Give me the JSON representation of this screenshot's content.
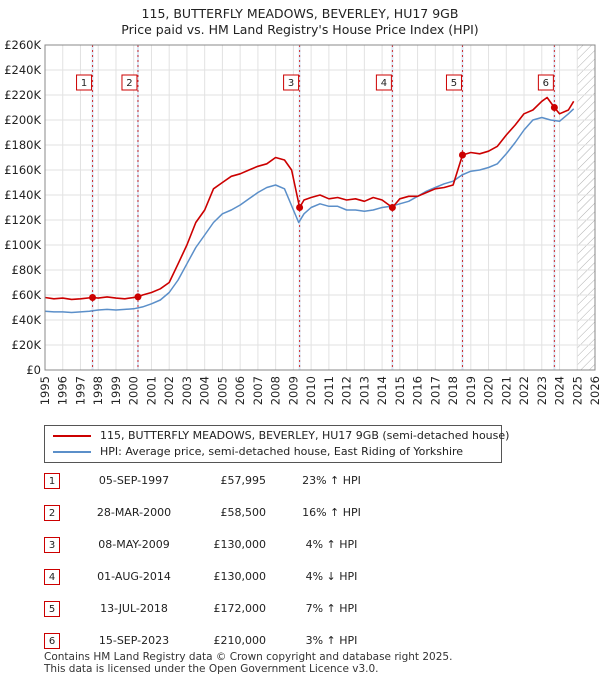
{
  "title_line1": "115, BUTTERFLY MEADOWS, BEVERLEY, HU17 9GB",
  "title_line2": "Price paid vs. HM Land Registry's House Price Index (HPI)",
  "colors": {
    "property": "#cc0000",
    "hpi": "#5b8fc9",
    "hpi_shade": "#dbe7f5",
    "marker_line": "#cc0000"
  },
  "chart_data": {
    "type": "line",
    "x_range": [
      1995,
      2026
    ],
    "ylim": [
      0,
      260000
    ],
    "y_ticks": [
      0,
      20000,
      40000,
      60000,
      80000,
      100000,
      120000,
      140000,
      160000,
      180000,
      200000,
      220000,
      240000,
      260000
    ],
    "y_tick_labels": [
      "£0",
      "£20K",
      "£40K",
      "£60K",
      "£80K",
      "£100K",
      "£120K",
      "£140K",
      "£160K",
      "£180K",
      "£200K",
      "£220K",
      "£240K",
      "£260K"
    ],
    "x_ticks": [
      1995,
      1996,
      1997,
      1998,
      1999,
      2000,
      2001,
      2002,
      2003,
      2004,
      2005,
      2006,
      2007,
      2008,
      2009,
      2010,
      2011,
      2012,
      2013,
      2014,
      2015,
      2016,
      2017,
      2018,
      2019,
      2020,
      2021,
      2022,
      2023,
      2024,
      2025,
      2026
    ],
    "x_tick_labels": [
      "1995",
      "1996",
      "1997",
      "1998",
      "1999",
      "2000",
      "2001",
      "2002",
      "2003",
      "2004",
      "2005",
      "2006",
      "2007",
      "2008",
      "2009",
      "2010",
      "2011",
      "2012",
      "2013",
      "2014",
      "2015",
      "2016",
      "2017",
      "2018",
      "2019",
      "2020",
      "2021",
      "2022",
      "2023",
      "2024",
      "2025",
      "2026"
    ],
    "grid": true,
    "future_hatch_from": 2025.0,
    "series": [
      {
        "name": "115, BUTTERFLY MEADOWS, BEVERLEY, HU17 9GB (semi-detached house)",
        "x": [
          1995.0,
          1995.5,
          1996.0,
          1996.5,
          1997.0,
          1997.68,
          1998.0,
          1998.5,
          1999.0,
          1999.5,
          2000.24,
          2000.5,
          2001.0,
          2001.5,
          2002.0,
          2002.5,
          2003.0,
          2003.5,
          2004.0,
          2004.5,
          2005.0,
          2005.5,
          2006.0,
          2006.5,
          2007.0,
          2007.5,
          2008.0,
          2008.5,
          2008.9,
          2009.35,
          2009.6,
          2010.0,
          2010.5,
          2011.0,
          2011.5,
          2012.0,
          2012.5,
          2013.0,
          2013.5,
          2014.0,
          2014.58,
          2015.0,
          2015.5,
          2016.0,
          2016.5,
          2017.0,
          2017.5,
          2018.0,
          2018.53,
          2019.0,
          2019.5,
          2020.0,
          2020.5,
          2021.0,
          2021.5,
          2022.0,
          2022.5,
          2023.0,
          2023.3,
          2023.71,
          2024.0,
          2024.5,
          2024.8
        ],
        "y": [
          58000,
          57000,
          57500,
          56500,
          57000,
          57995,
          57500,
          58500,
          57500,
          57000,
          58500,
          60000,
          62000,
          65000,
          70000,
          85000,
          100000,
          118000,
          128000,
          145000,
          150000,
          155000,
          157000,
          160000,
          163000,
          165000,
          170000,
          168000,
          160000,
          130000,
          136000,
          138000,
          140000,
          137000,
          138000,
          136000,
          137000,
          135000,
          138000,
          136000,
          130000,
          137000,
          139000,
          139000,
          142000,
          145000,
          146000,
          148000,
          172000,
          174000,
          173000,
          175000,
          179000,
          188000,
          196000,
          205000,
          208000,
          215000,
          218000,
          210000,
          205000,
          208000,
          215000
        ]
      },
      {
        "name": "HPI: Average price, semi-detached house, East Riding of Yorkshire",
        "x": [
          1995.0,
          1995.5,
          1996.0,
          1996.5,
          1997.0,
          1997.5,
          1998.0,
          1998.5,
          1999.0,
          1999.5,
          2000.0,
          2000.5,
          2001.0,
          2001.5,
          2002.0,
          2002.5,
          2003.0,
          2003.5,
          2004.0,
          2004.5,
          2005.0,
          2005.5,
          2006.0,
          2006.5,
          2007.0,
          2007.5,
          2008.0,
          2008.5,
          2009.0,
          2009.3,
          2009.6,
          2010.0,
          2010.5,
          2011.0,
          2011.5,
          2012.0,
          2012.5,
          2013.0,
          2013.5,
          2014.0,
          2014.5,
          2015.0,
          2015.5,
          2016.0,
          2016.5,
          2017.0,
          2017.5,
          2018.0,
          2018.5,
          2019.0,
          2019.5,
          2020.0,
          2020.5,
          2021.0,
          2021.5,
          2022.0,
          2022.5,
          2023.0,
          2023.5,
          2024.0,
          2024.5,
          2024.8
        ],
        "y": [
          47000,
          46500,
          46500,
          46000,
          46500,
          47000,
          48000,
          48500,
          48000,
          48500,
          49000,
          50500,
          53000,
          56000,
          62000,
          72000,
          85000,
          98000,
          108000,
          118000,
          125000,
          128000,
          132000,
          137000,
          142000,
          146000,
          148000,
          145000,
          128000,
          118000,
          125000,
          130000,
          133000,
          131000,
          131000,
          128000,
          128000,
          127000,
          128000,
          130000,
          131000,
          133000,
          135000,
          139000,
          143000,
          146000,
          149000,
          151000,
          156000,
          159000,
          160000,
          162000,
          165000,
          173000,
          182000,
          192000,
          200000,
          202000,
          200000,
          199000,
          205000,
          209000
        ]
      }
    ],
    "sale_markers": [
      {
        "label": "1",
        "x": 1997.68,
        "y": 57995
      },
      {
        "label": "2",
        "x": 2000.24,
        "y": 58500
      },
      {
        "label": "3",
        "x": 2009.35,
        "y": 130000
      },
      {
        "label": "4",
        "x": 2014.58,
        "y": 130000
      },
      {
        "label": "5",
        "x": 2018.53,
        "y": 172000
      },
      {
        "label": "6",
        "x": 2023.71,
        "y": 210000
      }
    ]
  },
  "legend": {
    "property": "115, BUTTERFLY MEADOWS, BEVERLEY, HU17 9GB (semi-detached house)",
    "hpi": "HPI: Average price, semi-detached house, East Riding of Yorkshire"
  },
  "sales": [
    {
      "num": "1",
      "date": "05-SEP-1997",
      "price": "£57,995",
      "hpi": "23% ↑ HPI"
    },
    {
      "num": "2",
      "date": "28-MAR-2000",
      "price": "£58,500",
      "hpi": "16% ↑ HPI"
    },
    {
      "num": "3",
      "date": "08-MAY-2009",
      "price": "£130,000",
      "hpi": "4% ↑ HPI"
    },
    {
      "num": "4",
      "date": "01-AUG-2014",
      "price": "£130,000",
      "hpi": "4% ↓ HPI"
    },
    {
      "num": "5",
      "date": "13-JUL-2018",
      "price": "£172,000",
      "hpi": "7% ↑ HPI"
    },
    {
      "num": "6",
      "date": "15-SEP-2023",
      "price": "£210,000",
      "hpi": "3% ↑ HPI"
    }
  ],
  "footer_line1": "Contains HM Land Registry data © Crown copyright and database right 2025.",
  "footer_line2": "This data is licensed under the Open Government Licence v3.0."
}
